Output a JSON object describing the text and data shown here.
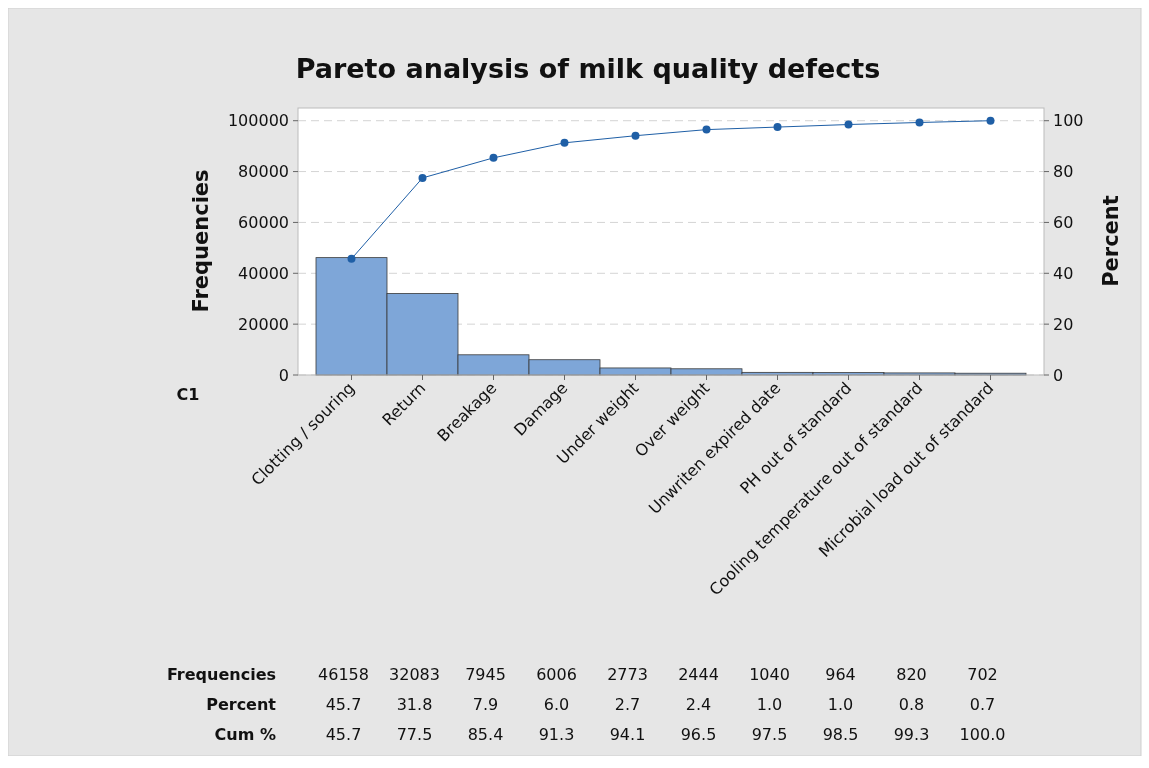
{
  "chart_data": {
    "type": "bar",
    "title": "Pareto analysis of milk quality defects",
    "ylabel": "Frequencies",
    "y2label": "Percent",
    "categories": [
      "Clotting / souring",
      "Return",
      "Breakage",
      "Damage",
      "Under weight",
      "Over weight",
      "Unwriten expired date",
      "PH out of standard",
      "Cooling temperature out of standard",
      "Microbial load out of standard"
    ],
    "series": [
      {
        "color": "#7ea6d8",
        "values": [
          46158,
          32083,
          7945,
          6006,
          2773,
          2444,
          1040,
          964,
          820,
          702
        ],
        "value_labels": [
          "46158",
          "32083",
          "7945",
          "6006",
          "2773",
          "2444",
          "1040",
          "964",
          "820",
          "702"
        ]
      },
      {
        "type": "line",
        "axis": "y2",
        "color": "#1f5fa6",
        "values": [
          45.7,
          77.5,
          85.4,
          91.3,
          94.1,
          96.5,
          97.5,
          98.5,
          99.3,
          100.0
        ],
        "value_labels": [
          "45.7",
          "77.5",
          "85.4",
          "91.3",
          "94.1",
          "96.5",
          "97.5",
          "98.5",
          "99.3",
          "100.0"
        ]
      }
    ],
    "annotations": [
      "C1",
      "Frequencies",
      "Percent",
      "Cum %",
      "45.7",
      "31.8",
      "7.9",
      "6.0",
      "2.7",
      "2.4",
      "1.0",
      "1.0",
      "0.8",
      "0.7"
    ],
    "ylim": [
      0,
      105000
    ],
    "yticks": [
      0,
      20000,
      40000,
      60000,
      80000,
      100000
    ],
    "y2lim": [
      0,
      105
    ],
    "y2ticks": [
      0,
      20,
      40,
      60,
      80,
      100
    ],
    "grid": "y",
    "marker": "circle",
    "line_style": "solid"
  }
}
